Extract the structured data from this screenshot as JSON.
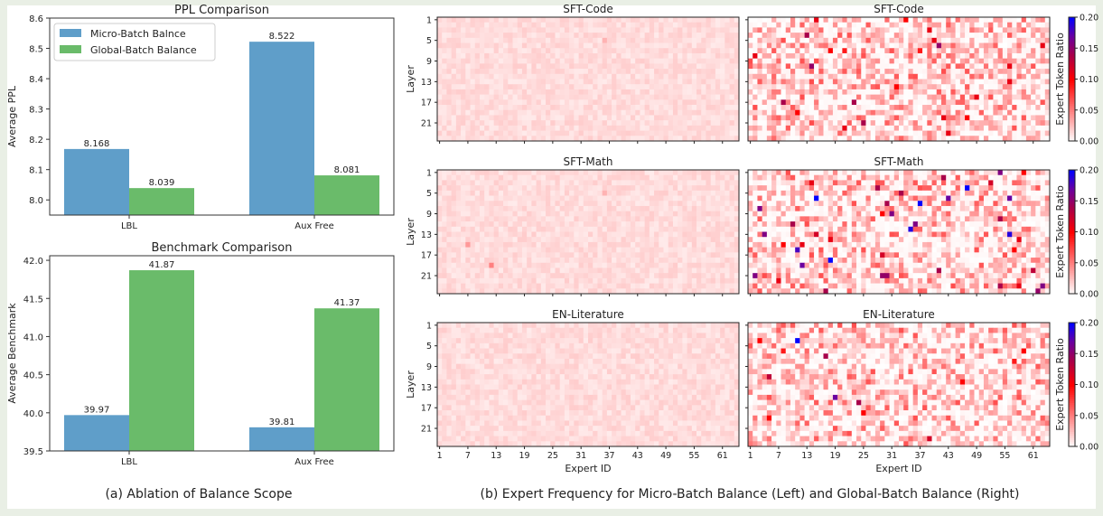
{
  "captions": {
    "a": "(a) Ablation of Balance Scope",
    "b": "(b) Expert Frequency for Micro-Batch Balance (Left) and Global-Batch Balance (Right)"
  },
  "colors": {
    "micro": "#5f9ec9",
    "global": "#6abb6a"
  },
  "chart_data": [
    {
      "type": "bar",
      "title": "PPL Comparison",
      "ylabel": "Average PPL",
      "categories": [
        "LBL",
        "Aux Free"
      ],
      "ylim": [
        7.95,
        8.6
      ],
      "yticks": [
        8.0,
        8.1,
        8.2,
        8.3,
        8.4,
        8.5,
        8.6
      ],
      "ytick_decimals": 1,
      "label_decimals": 3,
      "legend": "top-left",
      "series": [
        {
          "name": "Micro-Batch Balnce",
          "values": [
            8.168,
            8.522
          ]
        },
        {
          "name": "Global-Batch Balance",
          "values": [
            8.039,
            8.081
          ]
        }
      ]
    },
    {
      "type": "bar",
      "title": "Benchmark Comparison",
      "ylabel": "Average Benchmark",
      "categories": [
        "LBL",
        "Aux Free"
      ],
      "ylim": [
        39.5,
        42.06
      ],
      "yticks": [
        39.5,
        40.0,
        40.5,
        41.0,
        41.5,
        42.0
      ],
      "ytick_decimals": 1,
      "label_decimals": 2,
      "series": [
        {
          "values": [
            39.97,
            39.81
          ]
        },
        {
          "values": [
            41.87,
            41.37
          ]
        }
      ]
    },
    {
      "type": "heatmap",
      "xlabel": "Expert ID",
      "ylabel": "Layer",
      "n_experts": 64,
      "n_layers": 24,
      "xticks": [
        1,
        7,
        13,
        19,
        25,
        31,
        37,
        43,
        49,
        55,
        61
      ],
      "yticks": [
        1,
        5,
        9,
        13,
        17,
        21
      ],
      "colorbar": {
        "label": "Expert Token Ratio",
        "range": [
          0.0,
          0.2
        ],
        "ticks": [
          "0.00",
          "0.05",
          "0.10",
          "0.15",
          "0.20"
        ]
      },
      "panels": [
        {
          "title": "SFT-Code",
          "balance": "micro",
          "hotspots": [
            [
              36,
              5,
              0.03
            ]
          ]
        },
        {
          "title": "SFT-Code",
          "balance": "global",
          "hotspots": [
            [
              15,
              1,
              0.11
            ],
            [
              34,
              1,
              0.1
            ],
            [
              13,
              4,
              0.14
            ],
            [
              39,
              3,
              0.11
            ],
            [
              40,
              5,
              0.11
            ],
            [
              41,
              6,
              0.15
            ],
            [
              63,
              6,
              0.11
            ],
            [
              18,
              7,
              0.1
            ],
            [
              21,
              7,
              0.09
            ],
            [
              37,
              7,
              0.09
            ],
            [
              2,
              8,
              0.11
            ],
            [
              14,
              10,
              0.15
            ],
            [
              56,
              10,
              0.11
            ],
            [
              56,
              13,
              0.11
            ],
            [
              32,
              14,
              0.1
            ],
            [
              49,
              16,
              0.11
            ],
            [
              8,
              17,
              0.14
            ],
            [
              23,
              17,
              0.14
            ],
            [
              11,
              19,
              0.1
            ],
            [
              42,
              20,
              0.11
            ],
            [
              47,
              20,
              0.1
            ],
            [
              25,
              21,
              0.14
            ],
            [
              21,
              22,
              0.11
            ],
            [
              43,
              23,
              0.11
            ]
          ]
        },
        {
          "title": "SFT-Math",
          "balance": "micro",
          "hotspots": [
            [
              36,
              5,
              0.03
            ],
            [
              7,
              15,
              0.04
            ],
            [
              12,
              19,
              0.05
            ]
          ]
        },
        {
          "title": "SFT-Math",
          "balance": "global",
          "hotspots": [
            [
              54,
              1,
              0.16
            ],
            [
              59,
              1,
              0.1
            ],
            [
              42,
              2,
              0.14
            ],
            [
              14,
              3,
              0.11
            ],
            [
              52,
              3,
              0.12
            ],
            [
              28,
              4,
              0.14
            ],
            [
              47,
              4,
              0.2
            ],
            [
              33,
              5,
              0.14
            ],
            [
              15,
              6,
              0.2
            ],
            [
              43,
              6,
              0.17
            ],
            [
              56,
              6,
              0.17
            ],
            [
              30,
              7,
              0.14
            ],
            [
              37,
              7,
              0.2
            ],
            [
              3,
              8,
              0.16
            ],
            [
              31,
              9,
              0.16
            ],
            [
              29,
              9,
              0.1
            ],
            [
              54,
              10,
              0.14
            ],
            [
              10,
              11,
              0.14
            ],
            [
              36,
              11,
              0.16
            ],
            [
              35,
              12,
              0.19
            ],
            [
              4,
              13,
              0.16
            ],
            [
              15,
              13,
              0.12
            ],
            [
              56,
              13,
              0.19
            ],
            [
              18,
              14,
              0.11
            ],
            [
              58,
              14,
              0.11
            ],
            [
              8,
              15,
              0.1
            ],
            [
              12,
              15,
              0.11
            ],
            [
              11,
              16,
              0.18
            ],
            [
              57,
              16,
              0.1
            ],
            [
              29,
              17,
              0.12
            ],
            [
              18,
              18,
              0.2
            ],
            [
              12,
              19,
              0.17
            ],
            [
              41,
              20,
              0.14
            ],
            [
              61,
              20,
              0.13
            ],
            [
              2,
              21,
              0.16
            ],
            [
              29,
              21,
              0.15
            ],
            [
              30,
              21,
              0.15
            ],
            [
              7,
              22,
              0.11
            ],
            [
              54,
              23,
              0.14
            ],
            [
              58,
              23,
              0.11
            ],
            [
              63,
              23,
              0.16
            ],
            [
              17,
              24,
              0.14
            ],
            [
              62,
              24,
              0.15
            ]
          ]
        },
        {
          "title": "EN-Literature",
          "balance": "micro",
          "hotspots": []
        },
        {
          "title": "EN-Literature",
          "balance": "global",
          "hotspots": [
            [
              3,
              4,
              0.1
            ],
            [
              11,
              4,
              0.2
            ],
            [
              8,
              6,
              0.09
            ],
            [
              59,
              6,
              0.1
            ],
            [
              17,
              7,
              0.14
            ],
            [
              57,
              8,
              0.09
            ],
            [
              5,
              11,
              0.13
            ],
            [
              46,
              12,
              0.1
            ],
            [
              19,
              15,
              0.17
            ],
            [
              24,
              16,
              0.14
            ],
            [
              25,
              18,
              0.1
            ],
            [
              5,
              19,
              0.1
            ],
            [
              39,
              23,
              0.12
            ]
          ]
        }
      ]
    }
  ]
}
